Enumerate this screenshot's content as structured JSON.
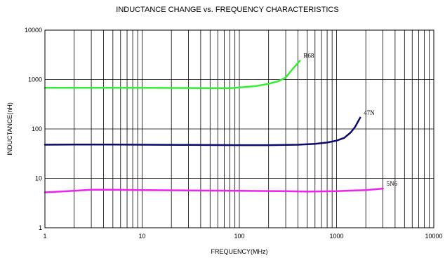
{
  "chart_data": {
    "type": "line",
    "title": "INDUCTANCE CHANGE vs. FREQUENCY CHARACTERISTICS",
    "xlabel": "FREQUENCY(MHz)",
    "ylabel": "INDUCTANCE(nH)",
    "xscale": "log",
    "yscale": "log",
    "xlim": [
      1,
      10000
    ],
    "ylim": [
      1,
      10000
    ],
    "xticks": [
      "1",
      "10",
      "100",
      "1000",
      "10000"
    ],
    "yticks": [
      "1",
      "10",
      "100",
      "1000",
      "10000"
    ],
    "grid": true,
    "legend": "none",
    "series": [
      {
        "name": "R68",
        "color": "#33ee33",
        "x": [
          1,
          2,
          5,
          10,
          20,
          50,
          80,
          100,
          150,
          200,
          250,
          300,
          350,
          420
        ],
        "y": [
          680,
          680,
          680,
          680,
          675,
          670,
          670,
          690,
          740,
          820,
          920,
          1100,
          1600,
          2400
        ]
      },
      {
        "name": "47N",
        "color": "#0a0a6e",
        "x": [
          1,
          2,
          5,
          10,
          30,
          100,
          200,
          400,
          600,
          800,
          1000,
          1200,
          1400,
          1550,
          1750
        ],
        "y": [
          48,
          48.5,
          48.5,
          48,
          47.5,
          47,
          47,
          48,
          50,
          53,
          58,
          66,
          85,
          110,
          170
        ]
      },
      {
        "name": "5N6",
        "color": "#ee22ee",
        "x": [
          1,
          2,
          3,
          5,
          10,
          30,
          100,
          300,
          500,
          1000,
          2000,
          3000
        ],
        "y": [
          5.2,
          5.6,
          5.9,
          5.9,
          5.8,
          5.7,
          5.6,
          5.5,
          5.4,
          5.5,
          5.8,
          6.2
        ]
      }
    ]
  }
}
